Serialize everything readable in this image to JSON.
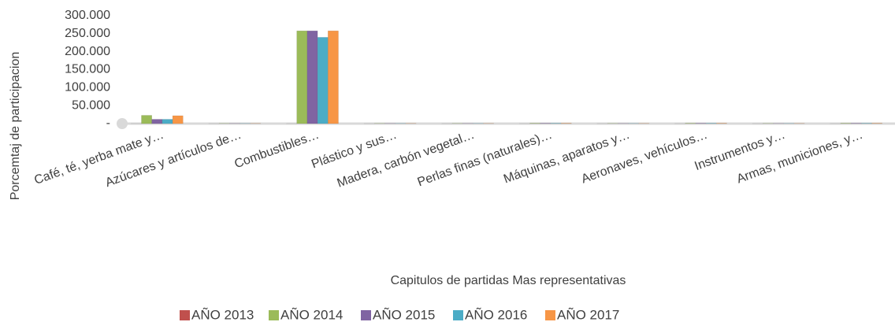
{
  "chart_data": {
    "type": "bar",
    "y_label": "Porcemtaj de participacion",
    "x_label": "Capitulos de partidas Mas representativas",
    "categories": [
      "Café, té, yerba mate y…",
      "Azúcares y artículos de…",
      "Combustibles…",
      "Plástico y sus…",
      "Madera, carbón vegetal…",
      "Perlas finas (naturales)…",
      "Máquinas, aparatos y…",
      "Aeronaves, vehículos…",
      "Instrumentos y…",
      "Armas, municiones, y…"
    ],
    "series": [
      {
        "name": "AÑO 2013",
        "color": "#c0504d",
        "values": [
          0,
          0,
          0,
          0,
          0,
          0,
          0,
          0,
          0,
          0
        ]
      },
      {
        "name": "AÑO 2014",
        "color": "#9bbb59",
        "values": [
          23000,
          500,
          258000,
          500,
          500,
          1000,
          500,
          1000,
          500,
          1000
        ]
      },
      {
        "name": "AÑO 2015",
        "color": "#8064a2",
        "values": [
          12000,
          500,
          258000,
          500,
          500,
          1000,
          500,
          1000,
          500,
          1000
        ]
      },
      {
        "name": "AÑO 2016",
        "color": "#4bacc6",
        "values": [
          12000,
          500,
          240000,
          500,
          500,
          1000,
          500,
          1000,
          500,
          1000
        ]
      },
      {
        "name": "AÑO 2017",
        "color": "#f79646",
        "values": [
          22000,
          500,
          258000,
          500,
          500,
          1000,
          500,
          1000,
          500,
          1000
        ]
      }
    ],
    "ylim": [
      0,
      300000
    ],
    "yticks": [
      {
        "value": 0,
        "label": "-"
      },
      {
        "value": 50000,
        "label": "50.000"
      },
      {
        "value": 100000,
        "label": "100.000"
      },
      {
        "value": 150000,
        "label": "150.000"
      },
      {
        "value": 200000,
        "label": "200.000"
      },
      {
        "value": 250000,
        "label": "250.000"
      },
      {
        "value": 300000,
        "label": "300.000"
      }
    ],
    "grid": false
  }
}
